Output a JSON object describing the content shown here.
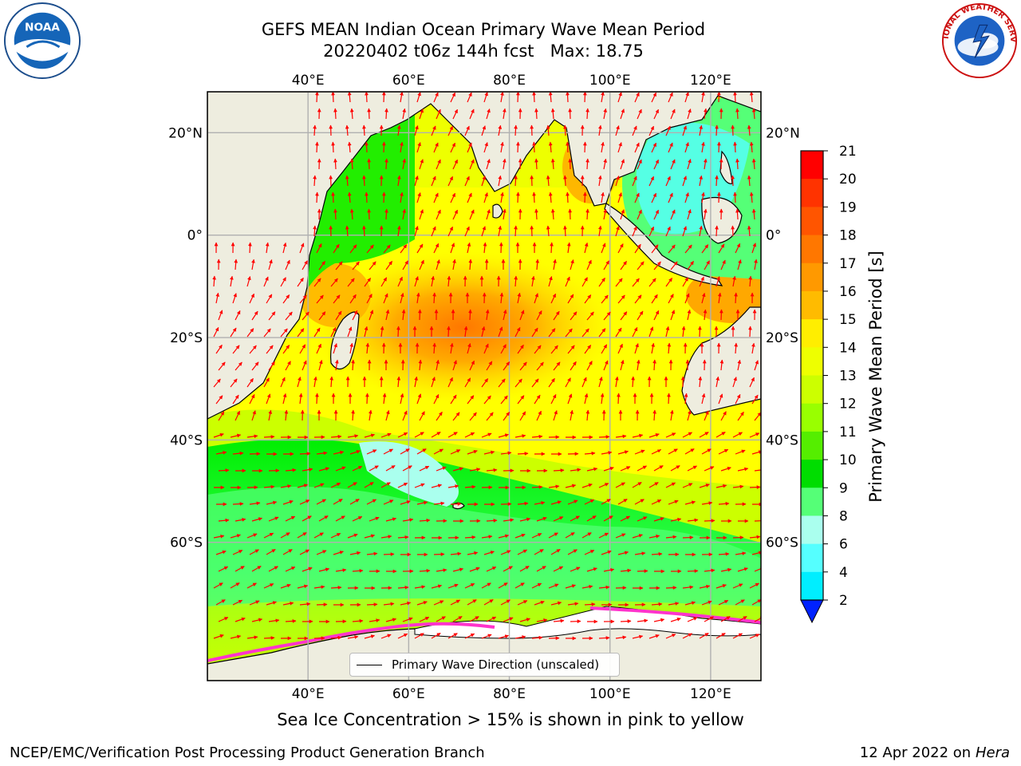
{
  "header": {
    "title_line1": "GEFS MEAN Indian Ocean Primary Wave Mean Period",
    "title_line2": "20220402 t06z 144h fcst   Max: 18.75"
  },
  "map": {
    "lon_ticks": [
      "40°E",
      "60°E",
      "80°E",
      "100°E",
      "120°E"
    ],
    "lat_ticks": [
      "20°N",
      "0°",
      "20°S",
      "40°S",
      "60°S"
    ],
    "lon_values": [
      40,
      60,
      80,
      100,
      120
    ],
    "lat_values": [
      20,
      0,
      -20,
      -40,
      -60
    ],
    "lon_range": [
      20,
      130
    ],
    "lat_range": [
      28,
      -87
    ],
    "ocean_colors": [
      "#00ff00",
      "#55ff77",
      "#ccff00",
      "#ffff00",
      "#ffdd00",
      "#ffb000",
      "#ff8800"
    ],
    "land_color": "#eeeddf",
    "vector_color": "#ff0000",
    "grid": true
  },
  "legend": {
    "label": "Primary Wave Direction (unscaled)"
  },
  "colorbar": {
    "label": "Primary Wave Mean Period [s]",
    "ticks": [
      "21",
      "20",
      "19",
      "18",
      "17",
      "16",
      "15",
      "14",
      "13",
      "12",
      "11",
      "10",
      "9",
      "8",
      "6",
      "4",
      "2"
    ],
    "colors": [
      "#ff0000",
      "#ff3300",
      "#ff5500",
      "#ff7700",
      "#ff9900",
      "#ffbb00",
      "#ffee00",
      "#eeff00",
      "#ccff00",
      "#99ff00",
      "#55ee00",
      "#00dd00",
      "#55ff77",
      "#aaffee",
      "#55ffff",
      "#00eeff",
      "#0099ff",
      "#0022ff"
    ]
  },
  "notes": {
    "sea_ice": "Sea Ice Concentration > 15% is shown in pink to yellow",
    "producer": "NCEP/EMC/Verification Post Processing Product Generation Branch",
    "date": "12 Apr 2022 on",
    "host": "Hera"
  },
  "logos": {
    "noaa": "NOAA",
    "nws": "NATIONAL WEATHER SERVICE"
  }
}
